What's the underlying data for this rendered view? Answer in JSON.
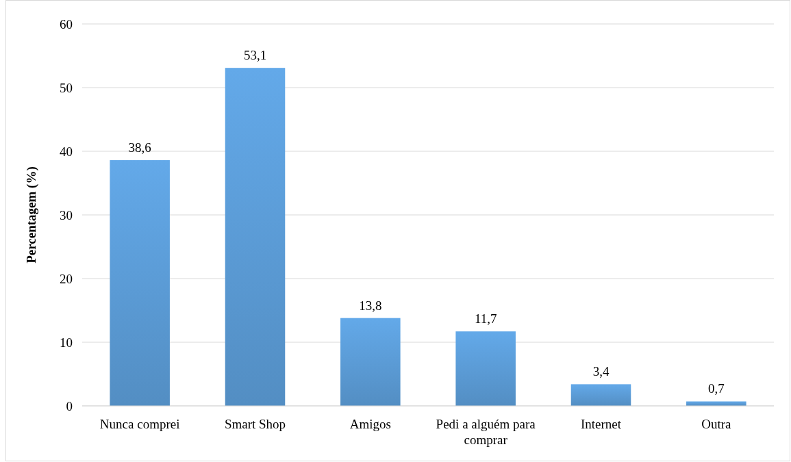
{
  "chart_data": {
    "type": "bar",
    "ylabel": "Percentagem (%)",
    "categories": [
      "Nunca comprei",
      "Smart Shop",
      "Amigos",
      "Pedi a alguém para comprar",
      "Internet",
      "Outra"
    ],
    "values": [
      38.6,
      53.1,
      13.8,
      11.7,
      3.4,
      0.7
    ],
    "color": "#5b9bd5",
    "ylim": [
      0,
      60
    ],
    "yticks": [
      0,
      10,
      20,
      30,
      40,
      50,
      60
    ],
    "grid": "y",
    "data_labels": true,
    "value_labels": [
      "38,6",
      "53,1",
      "13,8",
      "11,7",
      "3,4",
      "0,7"
    ]
  }
}
